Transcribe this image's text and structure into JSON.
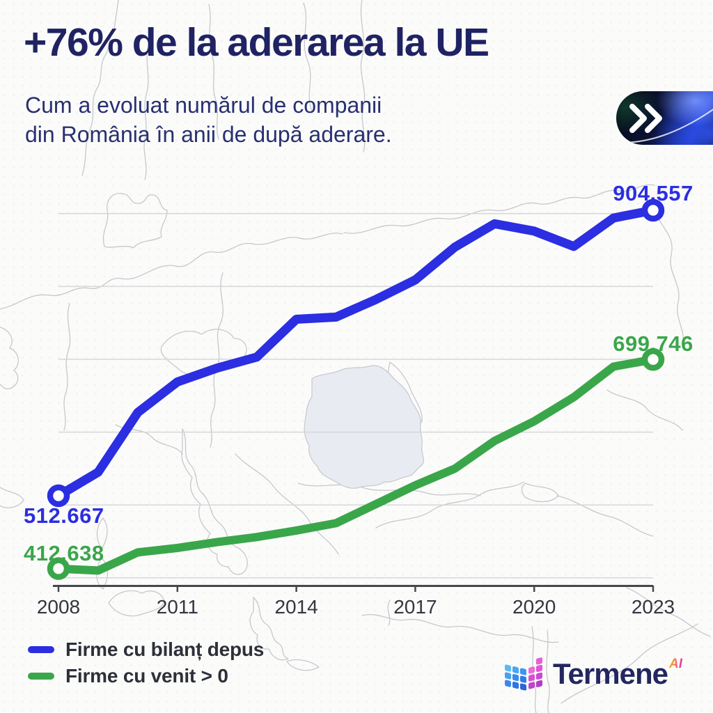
{
  "header": {
    "title": "+76% de la aderarea la UE",
    "subtitle_line1": "Cum a evoluat numărul de companii",
    "subtitle_line2": "din România în anii de după aderare."
  },
  "badge": {
    "icon": "double-chevron-right-icon"
  },
  "chart_data": {
    "type": "line",
    "x": [
      2008,
      2009,
      2010,
      2011,
      2012,
      2013,
      2014,
      2015,
      2016,
      2017,
      2018,
      2019,
      2020,
      2021,
      2022,
      2023
    ],
    "x_tick_labels": [
      "2008",
      "2011",
      "2014",
      "2017",
      "2020",
      "2023"
    ],
    "x_tick_years": [
      2008,
      2011,
      2014,
      2017,
      2020,
      2023
    ],
    "ylim": [
      350000,
      950000
    ],
    "gridline_values": [
      400000,
      500000,
      600000,
      700000,
      800000,
      900000
    ],
    "grid": "horizontal",
    "legend_position": "bottom-left",
    "series": [
      {
        "name": "Firme cu bilanț depus",
        "color": "#2b2ee1",
        "values": [
          512667,
          545000,
          627000,
          669000,
          688000,
          703000,
          755000,
          758000,
          782000,
          809000,
          854000,
          886000,
          876000,
          855000,
          894000,
          904557
        ],
        "first_point_label": "512.667",
        "last_point_label": "904.557"
      },
      {
        "name": "Firme cu venit > 0",
        "color": "#3aa64a",
        "values": [
          412638,
          410000,
          435000,
          441000,
          449000,
          456000,
          465000,
          475000,
          501000,
          527000,
          550000,
          588000,
          615000,
          648000,
          690000,
          699746
        ],
        "first_point_label": "412.638",
        "last_point_label": "699.746"
      }
    ]
  },
  "branding": {
    "logo_text": "Termene",
    "logo_sup": "AI"
  },
  "colors": {
    "title": "#1f2363",
    "subtitle": "#283070",
    "blue": "#2b2ee1",
    "green": "#3aa64a",
    "axis": "#46474b",
    "tick_label": "#33363f",
    "legend_text": "#2d3039",
    "background": "#fbfbfa",
    "romania_fill": "#e9ebf3",
    "map_line": "#c7c8cd",
    "gridline": "#d7d7db"
  }
}
